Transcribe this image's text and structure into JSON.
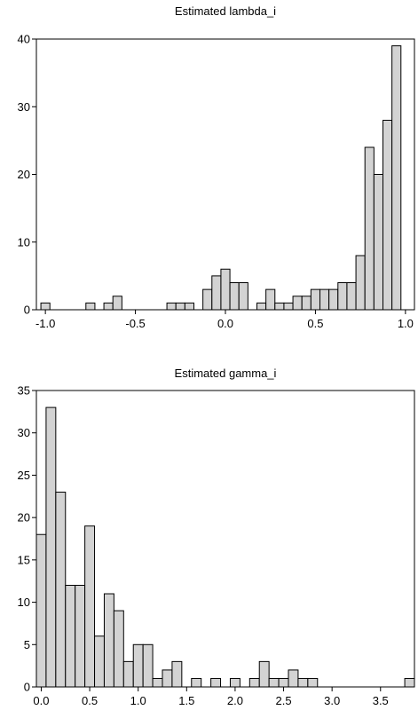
{
  "chart_data": [
    {
      "type": "bar",
      "title": "Estimated lambda_i",
      "xlabel": "",
      "ylabel": "",
      "bin_width": 0.05,
      "xlim": [
        -1.05,
        1.05
      ],
      "ylim": [
        0,
        40
      ],
      "x_ticks": [
        -1.0,
        -0.5,
        0.0,
        0.5,
        1.0
      ],
      "x_tick_labels": [
        "-1.0",
        "-0.5",
        "0.0",
        "0.5",
        "1.0"
      ],
      "y_ticks": [
        0,
        10,
        20,
        30,
        40
      ],
      "y_tick_labels": [
        "0",
        "10",
        "20",
        "30",
        "40"
      ],
      "grid": false,
      "x": [
        -1.0,
        -0.75,
        -0.65,
        -0.6,
        -0.3,
        -0.25,
        -0.2,
        -0.1,
        -0.05,
        0.0,
        0.05,
        0.1,
        0.2,
        0.25,
        0.3,
        0.35,
        0.4,
        0.45,
        0.5,
        0.55,
        0.6,
        0.65,
        0.7,
        0.75,
        0.8,
        0.85,
        0.9,
        0.95
      ],
      "values": [
        1,
        1,
        1,
        2,
        1,
        1,
        1,
        3,
        5,
        6,
        4,
        4,
        1,
        3,
        1,
        1,
        2,
        2,
        3,
        3,
        3,
        4,
        4,
        8,
        24,
        20,
        28,
        39
      ]
    },
    {
      "type": "bar",
      "title": "Estimated gamma_i",
      "xlabel": "",
      "ylabel": "",
      "bin_width": 0.1,
      "xlim": [
        -0.05,
        3.85
      ],
      "ylim": [
        0,
        35
      ],
      "x_ticks": [
        0.0,
        0.5,
        1.0,
        1.5,
        2.0,
        2.5,
        3.0,
        3.5
      ],
      "x_tick_labels": [
        "0.0",
        "0.5",
        "1.0",
        "1.5",
        "2.0",
        "2.5",
        "3.0",
        "3.5"
      ],
      "y_ticks": [
        0,
        5,
        10,
        15,
        20,
        25,
        30,
        35
      ],
      "y_tick_labels": [
        "0",
        "5",
        "10",
        "15",
        "20",
        "25",
        "30",
        "35"
      ],
      "grid": false,
      "x": [
        0.0,
        0.1,
        0.2,
        0.3,
        0.4,
        0.5,
        0.6,
        0.7,
        0.8,
        0.9,
        1.0,
        1.1,
        1.2,
        1.3,
        1.4,
        1.6,
        1.8,
        2.0,
        2.2,
        2.3,
        2.4,
        2.5,
        2.6,
        2.7,
        2.8,
        3.8
      ],
      "values": [
        18,
        33,
        23,
        12,
        12,
        19,
        6,
        11,
        9,
        3,
        5,
        5,
        1,
        2,
        3,
        1,
        1,
        1,
        1,
        3,
        1,
        1,
        2,
        1,
        1,
        1
      ]
    }
  ]
}
